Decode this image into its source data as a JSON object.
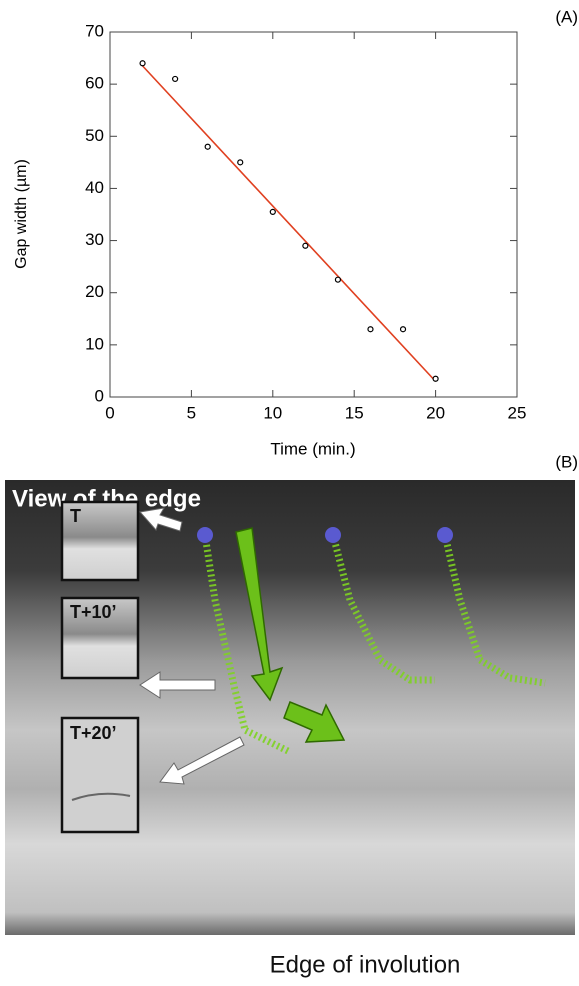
{
  "chart_data": {
    "type": "scatter",
    "label": "(A)",
    "x_label": "Time (min.)",
    "y_label": "Gap width (µm)",
    "x": [
      2,
      4,
      6,
      8,
      10,
      12,
      14,
      16,
      18,
      20
    ],
    "values": [
      64,
      61,
      48,
      45,
      35.5,
      29,
      22.5,
      13,
      13,
      3.5
    ],
    "color": "#000000",
    "fit_line": {
      "x": [
        2,
        20
      ],
      "values": [
        63.5,
        3
      ],
      "color": "#e04020"
    },
    "xlim": [
      0,
      25
    ],
    "xticks": [
      0,
      5,
      10,
      15,
      20,
      25
    ],
    "ylim": [
      0,
      70
    ],
    "yticks": [
      0,
      10,
      20,
      30,
      40,
      50,
      60,
      70
    ]
  },
  "image_panel": {
    "label": "(B)",
    "title": "View of the edge",
    "insets": [
      "T",
      "T+10’",
      "T+20’"
    ],
    "caption": "Edge of involution"
  }
}
